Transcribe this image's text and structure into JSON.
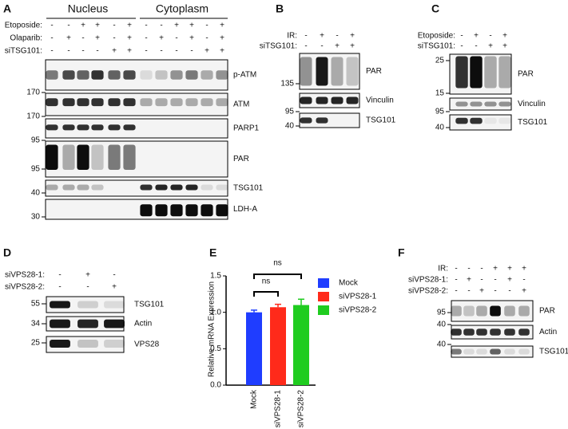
{
  "panels": {
    "A": {
      "label": "A",
      "headers": [
        "Nucleus",
        "Cytoplasm"
      ],
      "treatments": [
        {
          "name": "Etoposide:",
          "signs": [
            "-",
            "-",
            "+",
            "+",
            "-",
            "+",
            "-",
            "-",
            "+",
            "+",
            "-",
            "+"
          ]
        },
        {
          "name": "Olaparib:",
          "signs": [
            "-",
            "+",
            "-",
            "+",
            "-",
            "+",
            "-",
            "+",
            "-",
            "+",
            "-",
            "+"
          ]
        },
        {
          "name": "siTSG101:",
          "signs": [
            "-",
            "-",
            "-",
            "-",
            "+",
            "+",
            "-",
            "-",
            "-",
            "-",
            "+",
            "+"
          ]
        }
      ],
      "blots": [
        {
          "name": "p-ATM",
          "markers": [
            "170"
          ]
        },
        {
          "name": "ATM",
          "markers": [
            "170"
          ]
        },
        {
          "name": "PARP1",
          "markers": [
            "95"
          ]
        },
        {
          "name": "PAR",
          "markers": [
            "95"
          ]
        },
        {
          "name": "TSG101",
          "markers": [
            "40"
          ]
        },
        {
          "name": "LDH-A",
          "markers": [
            "30"
          ]
        }
      ]
    },
    "B": {
      "label": "B",
      "treatments": [
        {
          "name": "IR:",
          "signs": [
            "-",
            "+",
            "-",
            "+"
          ]
        },
        {
          "name": "siTSG101:",
          "signs": [
            "-",
            "-",
            "+",
            "+"
          ]
        }
      ],
      "blots": [
        {
          "name": "PAR",
          "markers": [
            "135"
          ]
        },
        {
          "name": "Vinculin",
          "markers": [
            "95"
          ]
        },
        {
          "name": "TSG101",
          "markers": [
            "40"
          ]
        }
      ]
    },
    "C": {
      "label": "C",
      "treatments": [
        {
          "name": "Etoposide:",
          "signs": [
            "-",
            "+",
            "-",
            "+"
          ]
        },
        {
          "name": "siTSG101:",
          "signs": [
            "-",
            "-",
            "+",
            "+"
          ]
        }
      ],
      "blots": [
        {
          "name": "PAR",
          "markers": [
            "25",
            "15"
          ]
        },
        {
          "name": "Vinculin",
          "markers": [
            "95"
          ]
        },
        {
          "name": "TSG101",
          "markers": [
            "40"
          ]
        }
      ]
    },
    "D": {
      "label": "D",
      "treatments": [
        {
          "name": "siVPS28-1:",
          "signs": [
            "-",
            "+",
            "-"
          ]
        },
        {
          "name": "siVPS28-2:",
          "signs": [
            "-",
            "-",
            "+"
          ]
        }
      ],
      "blots": [
        {
          "name": "TSG101",
          "markers": [
            "55"
          ]
        },
        {
          "name": "Actin",
          "markers": [
            "34"
          ]
        },
        {
          "name": "VPS28",
          "markers": [
            "25"
          ]
        }
      ]
    },
    "F": {
      "label": "F",
      "treatments": [
        {
          "name": "IR:",
          "signs": [
            "-",
            "-",
            "-",
            "+",
            "+",
            "+"
          ]
        },
        {
          "name": "siVPS28-1:",
          "signs": [
            "-",
            "+",
            "-",
            "-",
            "+",
            "-"
          ]
        },
        {
          "name": "siVPS28-2:",
          "signs": [
            "-",
            "-",
            "+",
            "-",
            "-",
            "+"
          ]
        }
      ],
      "blots": [
        {
          "name": "PAR",
          "markers": [
            "95"
          ]
        },
        {
          "name": "Actin",
          "markers": [
            "40"
          ]
        },
        {
          "name": "TSG101",
          "markers": [
            "40"
          ]
        }
      ]
    }
  },
  "chart_data": {
    "type": "bar",
    "panel_label": "E",
    "ylabel": "Relative mRNA Expression",
    "categories": [
      "Mock",
      "siVPS28-1",
      "siVPS28-2"
    ],
    "values": [
      1.0,
      1.07,
      1.1
    ],
    "errors": [
      0.03,
      0.04,
      0.08
    ],
    "colors": [
      "#1f3dff",
      "#ff2a1a",
      "#1fcc1f"
    ],
    "ylim": [
      0,
      1.5
    ],
    "yticks": [
      {
        "value": 0,
        "label": "0.0"
      },
      0.5,
      {
        "value": 1,
        "label": "1.0"
      },
      1.5
    ],
    "annotations": [
      "ns",
      "ns"
    ]
  }
}
